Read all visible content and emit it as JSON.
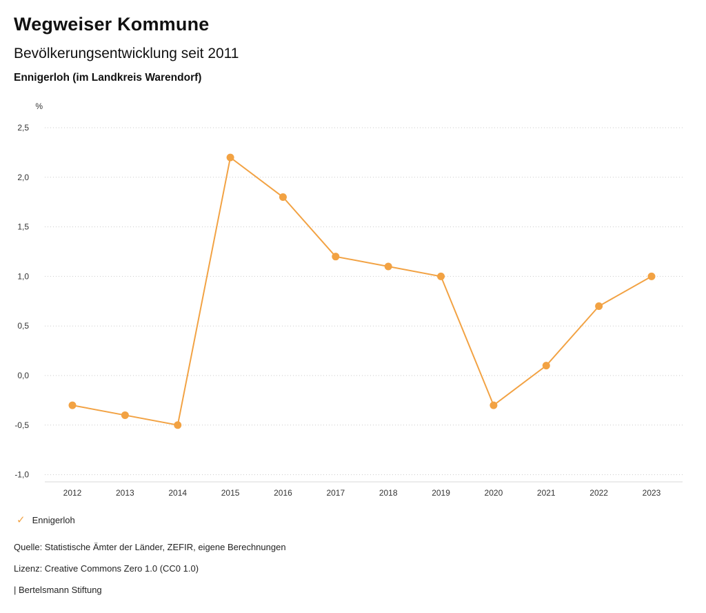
{
  "header": {
    "title": "Wegweiser Kommune",
    "subtitle": "Bevölkerungsentwicklung seit 2011",
    "region": "Ennigerloh (im Landkreis Warendorf)"
  },
  "chart_data": {
    "type": "line",
    "title": "Bevölkerungsentwicklung seit 2011",
    "region": "Ennigerloh (im Landkreis Warendorf)",
    "xlabel": "",
    "ylabel": "%",
    "unit_label": "%",
    "x": [
      2012,
      2013,
      2014,
      2015,
      2016,
      2017,
      2018,
      2019,
      2020,
      2021,
      2022,
      2023
    ],
    "series": [
      {
        "name": "Ennigerloh",
        "values": [
          -0.3,
          -0.4,
          -0.5,
          2.2,
          1.8,
          1.2,
          1.1,
          1.0,
          -0.3,
          0.1,
          0.7,
          1.0
        ]
      }
    ],
    "ylim": [
      -1.0,
      2.5
    ],
    "yticks": [
      {
        "label": "2,5",
        "value": 2.5
      },
      {
        "label": "2,0",
        "value": 2.0
      },
      {
        "label": "1,5",
        "value": 1.5
      },
      {
        "label": "1,0",
        "value": 1.0
      },
      {
        "label": "0,5",
        "value": 0.5
      },
      {
        "label": "0,0",
        "value": 0.0
      },
      {
        "label": "-0,5",
        "value": -0.5
      },
      {
        "label": "-1,0",
        "value": -1.0
      }
    ],
    "grid": "horizontal-dotted",
    "line_color": "#F2A243",
    "marker": "circle",
    "legend_position": "bottom-left"
  },
  "legend": {
    "items": [
      {
        "label": "Ennigerloh",
        "color": "#F2A243",
        "marker": "check"
      }
    ]
  },
  "footer": {
    "source": "Quelle: Statistische Ämter der Länder, ZEFIR, eigene Berechnungen",
    "license": "Lizenz: Creative Commons Zero 1.0 (CC0 1.0)",
    "attribution": "| Bertelsmann Stiftung"
  }
}
